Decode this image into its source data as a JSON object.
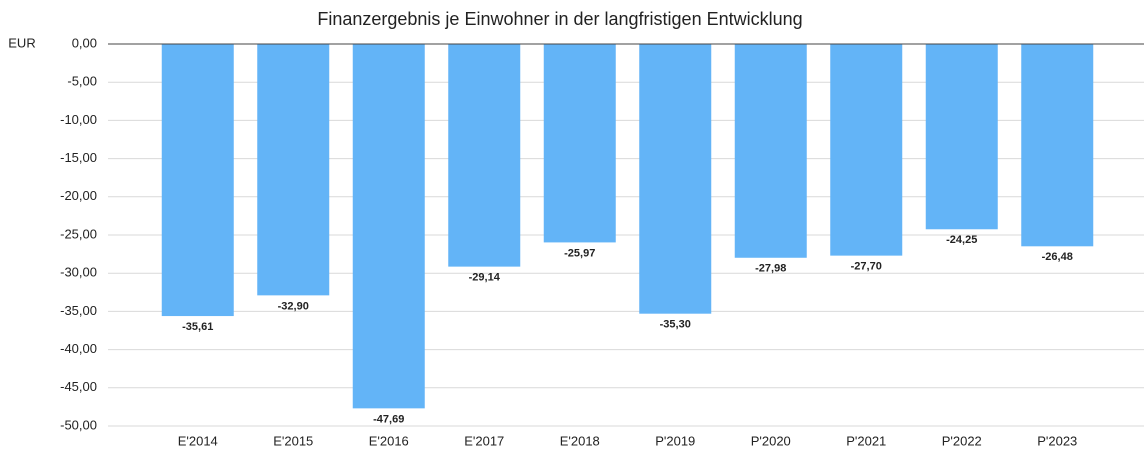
{
  "chart_data": {
    "type": "bar",
    "title": "Finanzergebnis je Einwohner in der langfristigen Entwicklung",
    "y_label": "EUR",
    "categories": [
      "E'2014",
      "E'2015",
      "E'2016",
      "E'2017",
      "E'2018",
      "P'2019",
      "P'2020",
      "P'2021",
      "P'2022",
      "P'2023"
    ],
    "values": [
      -35.61,
      -32.9,
      -47.69,
      -29.14,
      -25.97,
      -35.3,
      -27.98,
      -27.7,
      -24.25,
      -26.48
    ],
    "value_labels": [
      "-35,61",
      "-32,90",
      "-47,69",
      "-29,14",
      "-25,97",
      "-35,30",
      "-27,98",
      "-27,70",
      "-24,25",
      "-26,48"
    ],
    "color": "#63b4f7",
    "ylim": [
      -50,
      0
    ],
    "yticks": [
      {
        "value": 0,
        "label": "0,00"
      },
      {
        "value": -5,
        "label": "-5,00"
      },
      {
        "value": -10,
        "label": "-10,00"
      },
      {
        "value": -15,
        "label": "-15,00"
      },
      {
        "value": -20,
        "label": "-20,00"
      },
      {
        "value": -25,
        "label": "-25,00"
      },
      {
        "value": -30,
        "label": "-30,00"
      },
      {
        "value": -35,
        "label": "-35,00"
      },
      {
        "value": -40,
        "label": "-40,00"
      },
      {
        "value": -45,
        "label": "-45,00"
      },
      {
        "value": -50,
        "label": "-50,00"
      }
    ],
    "grid": true
  }
}
